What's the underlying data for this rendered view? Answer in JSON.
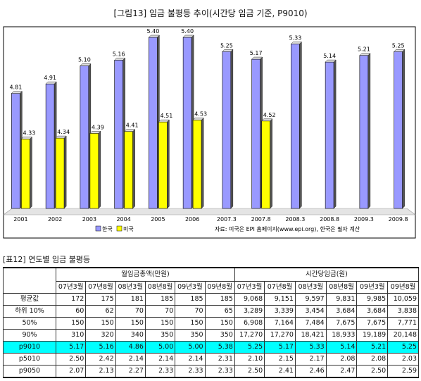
{
  "figure": {
    "title": "[그림13] 임금 불평등 추이(시간당 임금 기준, P9010)",
    "source": "자료: 미국은 EPI 홈페이지(www.epi.org), 한국은 필자 계산"
  },
  "chart_data": {
    "type": "bar",
    "categories": [
      "2001",
      "2002",
      "2003",
      "2004",
      "2005",
      "2006",
      "2007.3",
      "2007.8",
      "2008.3",
      "2008.8",
      "2009.3",
      "2009.8"
    ],
    "series": [
      {
        "name": "한국",
        "color": "#9999ff",
        "values": [
          4.81,
          4.91,
          5.1,
          5.16,
          5.4,
          5.4,
          5.25,
          5.17,
          5.33,
          5.14,
          5.21,
          5.25
        ],
        "labels": [
          "4.81",
          "4.91",
          "5.10",
          "5.16",
          "5.40",
          "5.40",
          "5.25",
          "5.17",
          "5.33",
          "5.14",
          "5.21",
          "5.25"
        ]
      },
      {
        "name": "미국",
        "color": "#ffff00",
        "values": [
          4.33,
          4.34,
          4.39,
          4.41,
          4.51,
          4.53,
          null,
          4.52,
          null,
          null,
          null,
          null
        ],
        "labels": [
          "4.33",
          "4.34",
          "4.39",
          "4.41",
          "4.51",
          "4.53",
          "",
          "4.52",
          "",
          "",
          "",
          ""
        ]
      }
    ],
    "title": "",
    "xlabel": "",
    "ylabel": "",
    "ylim": [
      3.6,
      5.6
    ],
    "grid": false,
    "legend": "bottom-left"
  },
  "table": {
    "title": "[표12] 연도별 임금 불평등",
    "group1": "월임금총액(만원)",
    "group2": "시간당임금(원)",
    "columns": [
      "07년3월",
      "07년8월",
      "08년3월",
      "08년8월",
      "09년3월",
      "09년8월",
      "07년3월",
      "07년8월",
      "08년3월",
      "08년8월",
      "09년3월",
      "09년8월"
    ],
    "rows": [
      {
        "label": "평균값",
        "cells": [
          "172",
          "175",
          "181",
          "185",
          "185",
          "185",
          "9,068",
          "9,151",
          "9,597",
          "9,831",
          "9,985",
          "10,059"
        ]
      },
      {
        "label": "하위 10%",
        "cells": [
          "60",
          "62",
          "70",
          "70",
          "70",
          "65",
          "3,289",
          "3,339",
          "3,454",
          "3,684",
          "3,684",
          "3,838"
        ]
      },
      {
        "label": "50%",
        "cells": [
          "150",
          "150",
          "150",
          "150",
          "150",
          "150",
          "6,908",
          "7,164",
          "7,484",
          "7,675",
          "7,675",
          "7,771"
        ]
      },
      {
        "label": "90%",
        "cells": [
          "310",
          "320",
          "340",
          "350",
          "350",
          "350",
          "17,270",
          "17,270",
          "18,421",
          "18,933",
          "19,189",
          "20,148"
        ]
      },
      {
        "label": "p9010",
        "cells": [
          "5.17",
          "5.16",
          "4.86",
          "5.00",
          "5.00",
          "5.38",
          "5.25",
          "5.17",
          "5.33",
          "5.14",
          "5.21",
          "5.25"
        ],
        "highlight": true
      },
      {
        "label": "p5010",
        "cells": [
          "2.50",
          "2.42",
          "2.14",
          "2.14",
          "2.14",
          "2.31",
          "2.10",
          "2.15",
          "2.17",
          "2.08",
          "2.08",
          "2.03"
        ]
      },
      {
        "label": "p9050",
        "cells": [
          "2.07",
          "2.13",
          "2.27",
          "2.33",
          "2.33",
          "2.33",
          "2.50",
          "2.41",
          "2.46",
          "2.47",
          "2.50",
          "2.59"
        ]
      }
    ]
  }
}
